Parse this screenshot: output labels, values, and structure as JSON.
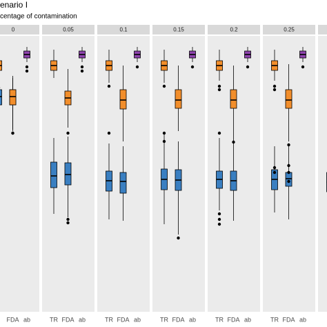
{
  "chart_data": {
    "type": "boxplot",
    "title": "enario I",
    "subtitle": "centage of contamination",
    "categories": [
      "TR",
      "FDA",
      "ab"
    ],
    "ylim": [
      0,
      400
    ],
    "series": [
      {
        "color": "#f28e2b"
      },
      {
        "color": "#3a7fc1"
      },
      {
        "color": "#8e44ad"
      }
    ],
    "facets": [
      {
        "label": "0",
        "boxes": [
          {
            "series": 0,
            "category": 0,
            "whislo": 340,
            "q1": 350,
            "med": 357,
            "q3": 364,
            "whishi": 380,
            "outliers": [
              325,
              315
            ]
          },
          {
            "series": 1,
            "category": 0,
            "whislo": 267,
            "q1": 300,
            "med": 312,
            "q3": 322,
            "whishi": 337,
            "outliers": []
          },
          {
            "series": 1,
            "category": 1,
            "whislo": 264,
            "q1": 300,
            "med": 312,
            "q3": 322,
            "whishi": 339,
            "outliers": [
              259
            ]
          },
          {
            "series": 0,
            "category": 1,
            "whislo": 262,
            "q1": 300,
            "med": 312,
            "q3": 322,
            "whishi": 342,
            "outliers": [
              259
            ]
          },
          {
            "series": 2,
            "category": 2,
            "whislo": 362,
            "q1": 368,
            "med": 373,
            "q3": 378,
            "whishi": 384,
            "outliers": [
              355,
              349
            ]
          }
        ]
      },
      {
        "label": "0.05",
        "boxes": [
          {
            "series": 0,
            "category": 0,
            "whislo": 339,
            "q1": 350,
            "med": 357,
            "q3": 364,
            "whishi": 380,
            "outliers": []
          },
          {
            "series": 0,
            "category": 1,
            "whislo": 267,
            "q1": 300,
            "med": 310,
            "q3": 320,
            "whishi": 352,
            "outliers": [
              259
            ]
          },
          {
            "series": 1,
            "category": 0,
            "whislo": 142,
            "q1": 180,
            "med": 197,
            "q3": 217,
            "whishi": 252,
            "outliers": []
          },
          {
            "series": 1,
            "category": 1,
            "whislo": 137,
            "q1": 184,
            "med": 199,
            "q3": 216,
            "whishi": 254,
            "outliers": [
              134,
              129
            ]
          },
          {
            "series": 2,
            "category": 2,
            "whislo": 362,
            "q1": 368,
            "med": 373,
            "q3": 378,
            "whishi": 384,
            "outliers": [
              355,
              349
            ]
          }
        ]
      },
      {
        "label": "0.1",
        "boxes": [
          {
            "series": 0,
            "category": 0,
            "whislo": 332,
            "q1": 350,
            "med": 357,
            "q3": 364,
            "whishi": 380,
            "outliers": [
              327
            ]
          },
          {
            "series": 0,
            "category": 1,
            "whislo": 247,
            "q1": 294,
            "med": 307,
            "q3": 322,
            "whishi": 357,
            "outliers": []
          },
          {
            "series": 1,
            "category": 0,
            "whislo": 134,
            "q1": 175,
            "med": 190,
            "q3": 204,
            "whishi": 244,
            "outliers": [
              259
            ]
          },
          {
            "series": 1,
            "category": 1,
            "whislo": 132,
            "q1": 172,
            "med": 189,
            "q3": 202,
            "whishi": 240,
            "outliers": []
          },
          {
            "series": 2,
            "category": 2,
            "whislo": 362,
            "q1": 368,
            "med": 373,
            "q3": 378,
            "whishi": 384,
            "outliers": [
              355
            ]
          }
        ]
      },
      {
        "label": "0.15",
        "boxes": [
          {
            "series": 0,
            "category": 0,
            "whislo": 332,
            "q1": 350,
            "med": 357,
            "q3": 364,
            "whishi": 380,
            "outliers": [
              327
            ]
          },
          {
            "series": 0,
            "category": 1,
            "whislo": 262,
            "q1": 295,
            "med": 307,
            "q3": 322,
            "whishi": 357,
            "outliers": []
          },
          {
            "series": 1,
            "category": 0,
            "whislo": 127,
            "q1": 177,
            "med": 192,
            "q3": 207,
            "whishi": 257,
            "outliers": [
              259,
              247
            ]
          },
          {
            "series": 1,
            "category": 1,
            "whislo": 112,
            "q1": 176,
            "med": 191,
            "q3": 206,
            "whishi": 247,
            "outliers": [
              107
            ]
          },
          {
            "series": 2,
            "category": 2,
            "whislo": 362,
            "q1": 368,
            "med": 373,
            "q3": 378,
            "whishi": 384,
            "outliers": [
              355
            ]
          }
        ]
      },
      {
        "label": "0.2",
        "boxes": [
          {
            "series": 0,
            "category": 0,
            "whislo": 335,
            "q1": 350,
            "med": 357,
            "q3": 364,
            "whishi": 380,
            "outliers": [
              327,
              322
            ]
          },
          {
            "series": 0,
            "category": 1,
            "whislo": 242,
            "q1": 295,
            "med": 307,
            "q3": 322,
            "whishi": 357,
            "outliers": []
          },
          {
            "series": 1,
            "category": 0,
            "whislo": 147,
            "q1": 179,
            "med": 192,
            "q3": 204,
            "whishi": 252,
            "outliers": [
              259,
              142,
              134,
              127
            ]
          },
          {
            "series": 1,
            "category": 1,
            "whislo": 132,
            "q1": 176,
            "med": 190,
            "q3": 204,
            "whishi": 242,
            "outliers": [
              246
            ]
          },
          {
            "series": 2,
            "category": 2,
            "whislo": 362,
            "q1": 368,
            "med": 373,
            "q3": 378,
            "whishi": 384,
            "outliers": [
              355
            ]
          }
        ]
      },
      {
        "label": "0.25",
        "boxes": [
          {
            "series": 0,
            "category": 0,
            "whislo": 335,
            "q1": 350,
            "med": 357,
            "q3": 364,
            "whishi": 380,
            "outliers": [
              327,
              322
            ]
          },
          {
            "series": 0,
            "category": 1,
            "whislo": 247,
            "q1": 295,
            "med": 307,
            "q3": 322,
            "whishi": 359,
            "outliers": [
              242
            ]
          },
          {
            "series": 1,
            "category": 0,
            "whislo": 144,
            "q1": 177,
            "med": 192,
            "q3": 206,
            "whishi": 240,
            "outliers": [
              209,
              202
            ]
          },
          {
            "series": 1,
            "category": 1,
            "whislo": 134,
            "q1": 182,
            "med": 193,
            "q3": 202,
            "whishi": 242,
            "outliers": [
              212,
              202,
              189
            ]
          },
          {
            "series": 2,
            "category": 2,
            "whislo": 362,
            "q1": 368,
            "med": 373,
            "q3": 378,
            "whishi": 384,
            "outliers": [
              355
            ]
          }
        ]
      },
      {
        "label": null,
        "boxes": [
          {
            "series": 1,
            "category": 0,
            "whislo": 130,
            "q1": 174,
            "med": 188,
            "q3": 202,
            "whishi": 250,
            "outliers": []
          }
        ]
      }
    ]
  }
}
